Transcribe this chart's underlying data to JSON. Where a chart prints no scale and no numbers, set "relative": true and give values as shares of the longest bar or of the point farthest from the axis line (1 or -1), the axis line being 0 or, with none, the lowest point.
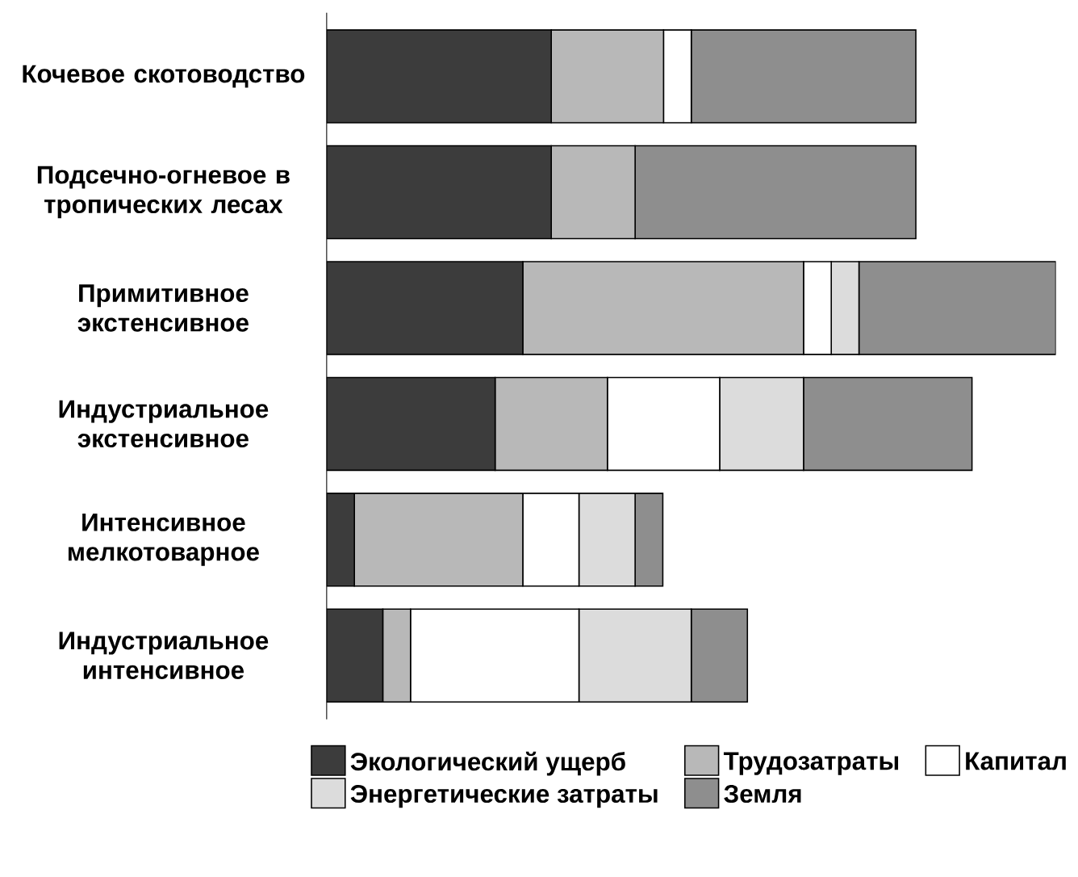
{
  "chart_data": {
    "type": "bar",
    "orientation": "horizontal",
    "stacked": true,
    "relative": true,
    "legend": "bottom",
    "categories": [
      "Кочевое скотоводство",
      "Подсечно-огневое в тропических лесах",
      "Примитивное экстенсивное",
      "Индустриальное экстенсивное",
      "Интенсивное мелкотоварное",
      "Индустриальное интенсивное"
    ],
    "series": [
      {
        "name": "Экологический ущерб",
        "color": "#3c3c3c",
        "values": [
          0.308,
          0.308,
          0.269,
          0.231,
          0.038,
          0.077
        ]
      },
      {
        "name": "Трудозатраты",
        "color": "#b8b8b8",
        "values": [
          0.154,
          0.115,
          0.385,
          0.154,
          0.231,
          0.038
        ]
      },
      {
        "name": "Капитал",
        "color": "#ffffff",
        "values": [
          0.038,
          0,
          0.038,
          0.154,
          0.077,
          0.231
        ]
      },
      {
        "name": "Энергетические затраты",
        "color": "#dcdcdc",
        "values": [
          0,
          0,
          0.038,
          0.115,
          0.077,
          0.154
        ]
      },
      {
        "name": "Земля",
        "color": "#8e8e8e",
        "values": [
          0.308,
          0.385,
          0.27,
          0.231,
          0.038,
          0.077
        ]
      }
    ]
  }
}
